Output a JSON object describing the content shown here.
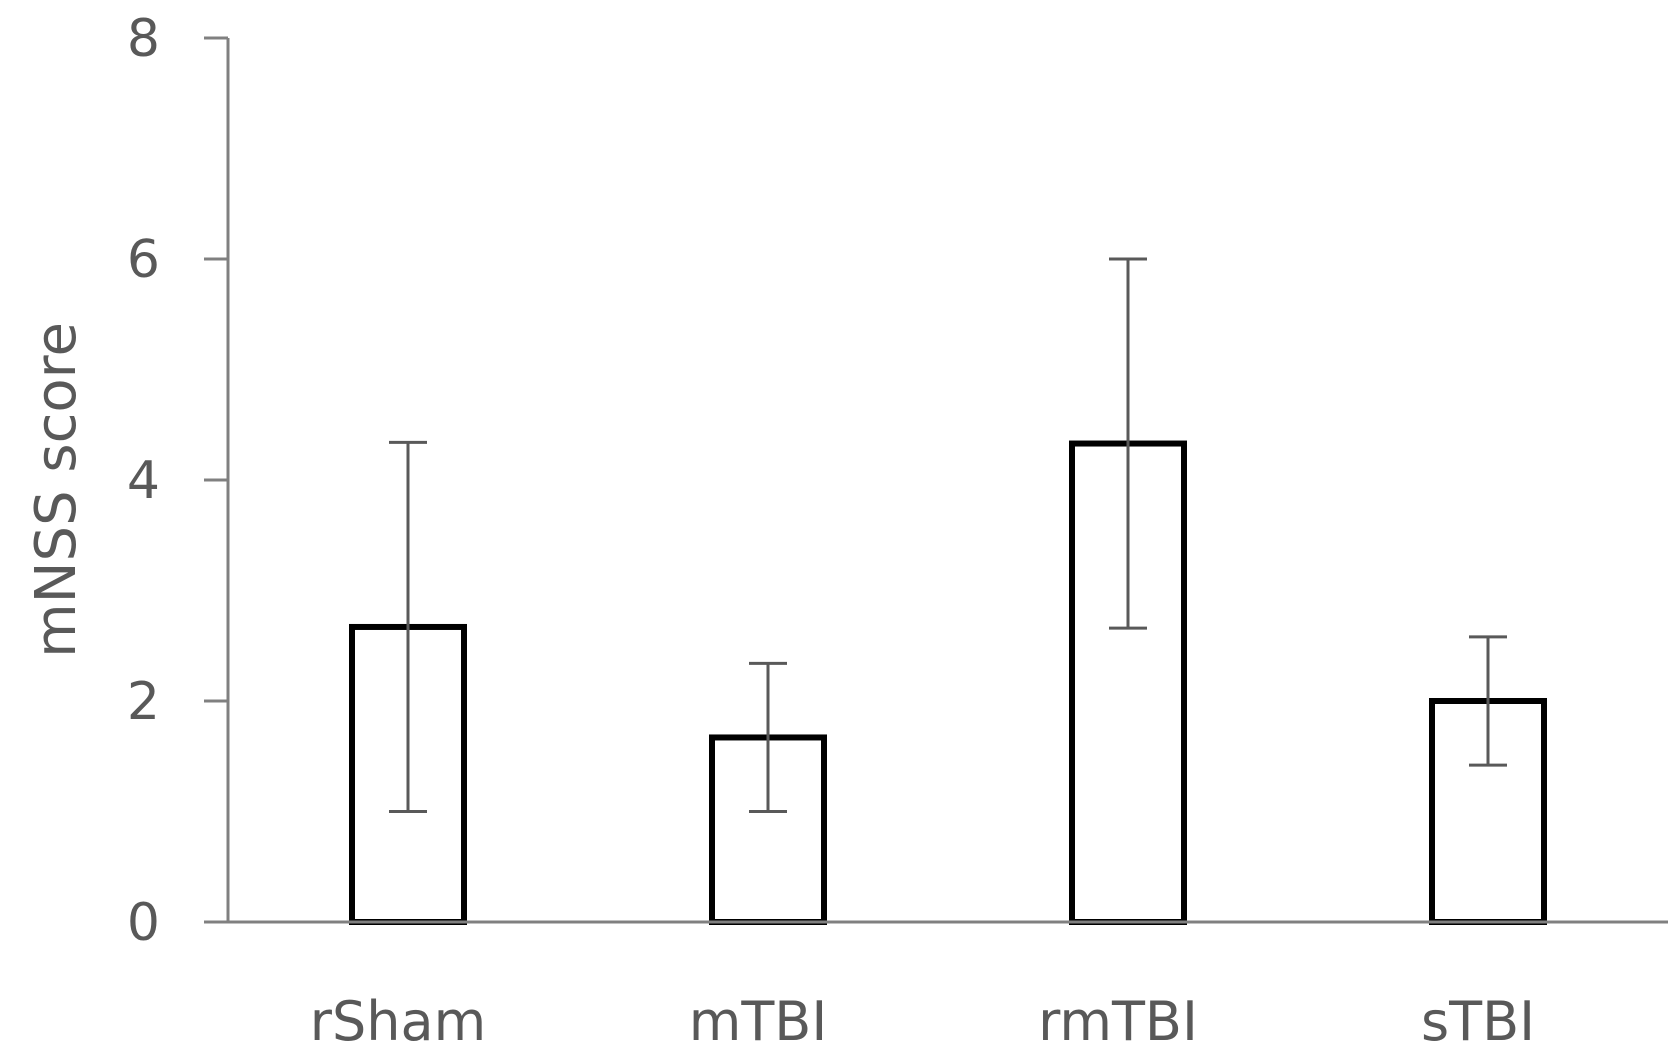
{
  "chart_data": {
    "type": "bar",
    "categories": [
      "rSham",
      "mTBI",
      "rmTBI",
      "sTBI"
    ],
    "values": [
      2.67,
      1.67,
      4.33,
      2.0
    ],
    "errors": [
      1.67,
      0.67,
      1.67,
      0.58
    ],
    "title": "",
    "xlabel": "",
    "ylabel": "mNSS score",
    "ylim": [
      0,
      8
    ],
    "yticks": [
      0,
      2,
      4,
      6,
      8
    ],
    "grid": false,
    "legend": "none",
    "colors": {
      "bar_fill": "#ffffff",
      "bar_stroke": "#000000",
      "axis": "#808080",
      "text": "#595959"
    }
  }
}
